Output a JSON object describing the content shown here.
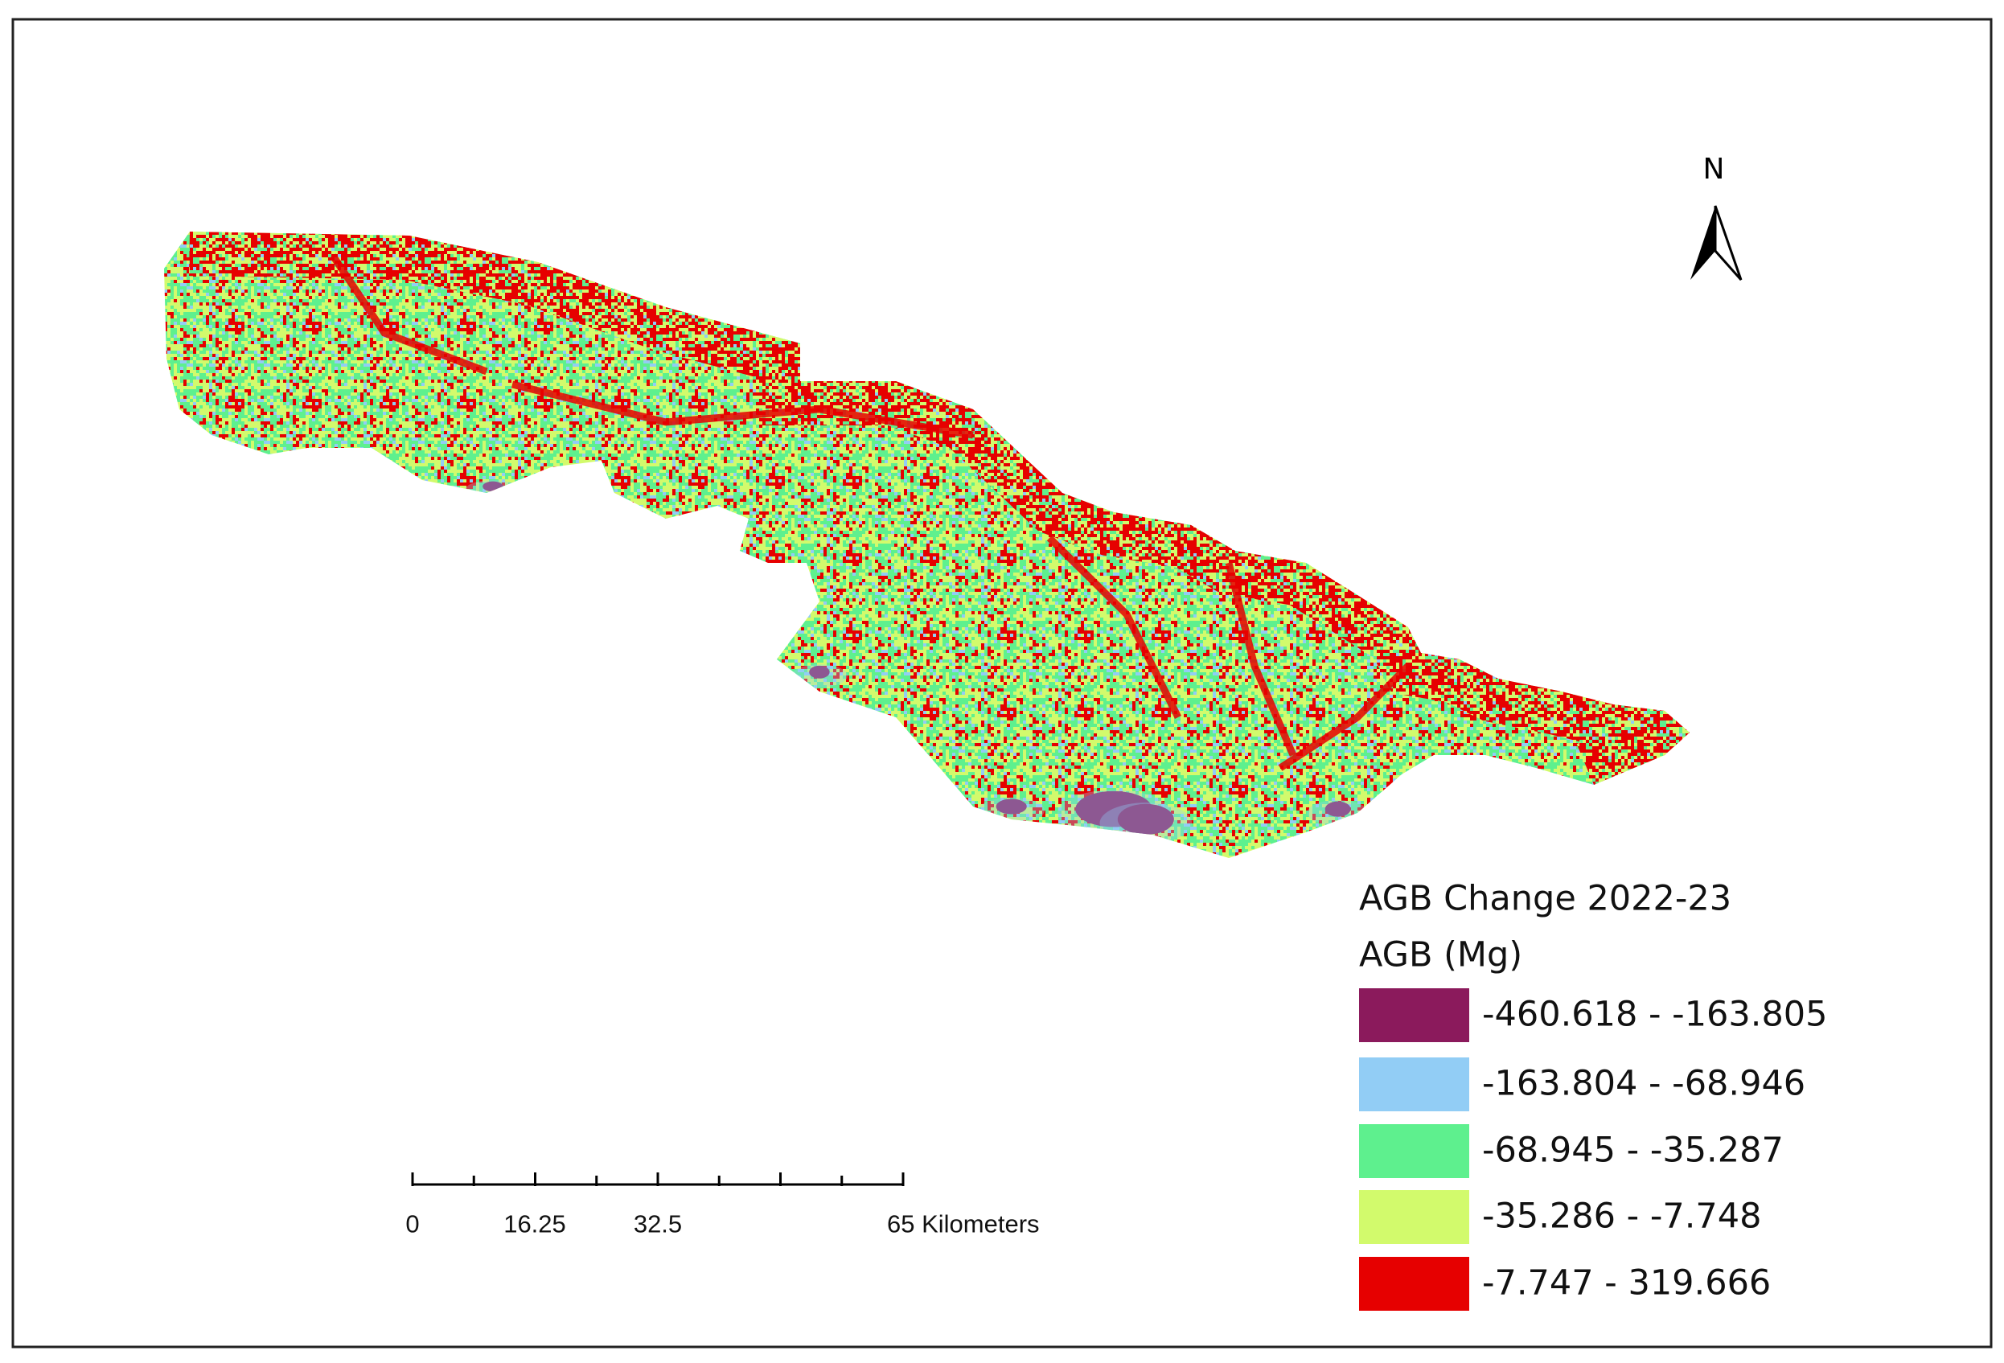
{
  "north_label": "N",
  "legend": {
    "title": "AGB Change 2022-23",
    "subtitle": "AGB (Mg)",
    "items": [
      {
        "label": "-460.618 - -163.805",
        "color": "#8b1a5c"
      },
      {
        "label": "-163.804 - -68.946",
        "color": "#92cdf5"
      },
      {
        "label": "-68.945 - -35.287",
        "color": "#5ef08e"
      },
      {
        "label": "-35.286 - -7.748",
        "color": "#d2fa6c"
      },
      {
        "label": "-7.747 - 319.666",
        "color": "#e60000"
      }
    ]
  },
  "scale_bar": {
    "labels": [
      "0",
      "16.25",
      "32.5",
      "65 Kilometers"
    ]
  }
}
